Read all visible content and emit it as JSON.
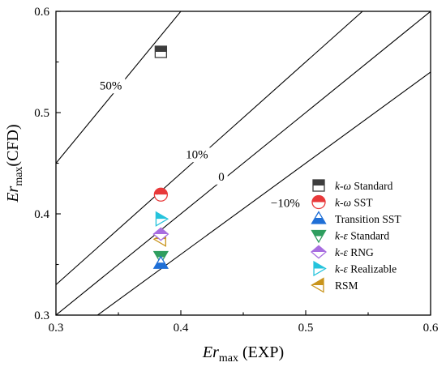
{
  "chart_data": {
    "type": "scatter",
    "xlabel": {
      "main": "Er",
      "sub": "max",
      "suffix": " (EXP)"
    },
    "ylabel": {
      "main": "Er",
      "sub": "max",
      "suffix": "(CFD)"
    },
    "xlim": [
      0.3,
      0.6
    ],
    "ylim": [
      0.3,
      0.6
    ],
    "x_ticks": [
      "0.3",
      "0.4",
      "0.5",
      "0.6"
    ],
    "y_ticks": [
      "0.3",
      "0.4",
      "0.5",
      "0.6"
    ],
    "grid": false,
    "legend_position": "right",
    "reference_lines": [
      {
        "label": "50%",
        "factor": 1.5
      },
      {
        "label": "10%",
        "factor": 1.1
      },
      {
        "label": "0",
        "factor": 1.0
      },
      {
        "label": "−10%",
        "factor": 0.9
      }
    ],
    "series": [
      {
        "name": "k-ω  Standard",
        "italic": "k-ω",
        "rest": "  Standard",
        "marker": "square-half",
        "color": "#3d3d3d",
        "x": 0.384,
        "y": 0.56
      },
      {
        "name": "k-ω  SST",
        "italic": "k-ω",
        "rest": "  SST",
        "marker": "circle-half",
        "color": "#e8393a",
        "x": 0.384,
        "y": 0.419
      },
      {
        "name": "Transition SST",
        "italic": "",
        "rest": "Transition SST",
        "marker": "triangle-up-half",
        "color": "#1f6fd6",
        "x": 0.384,
        "y": 0.351
      },
      {
        "name": "k-ε  Standard",
        "italic": "k-ε",
        "rest": "  Standard",
        "marker": "triangle-down-half",
        "color": "#2f9e5f",
        "x": 0.384,
        "y": 0.358
      },
      {
        "name": "k-ε  RNG",
        "italic": "k-ε",
        "rest": "  RNG",
        "marker": "diamond-half",
        "color": "#a86ee0",
        "x": 0.384,
        "y": 0.38
      },
      {
        "name": "k-ε  Realizable",
        "italic": "k-ε",
        "rest": "  Realizable",
        "marker": "triangle-right-half",
        "color": "#25c3dc",
        "x": 0.384,
        "y": 0.395
      },
      {
        "name": "RSM",
        "italic": "",
        "rest": "RSM",
        "marker": "triangle-left-half",
        "color": "#c9941c",
        "x": 0.384,
        "y": 0.375
      }
    ]
  }
}
